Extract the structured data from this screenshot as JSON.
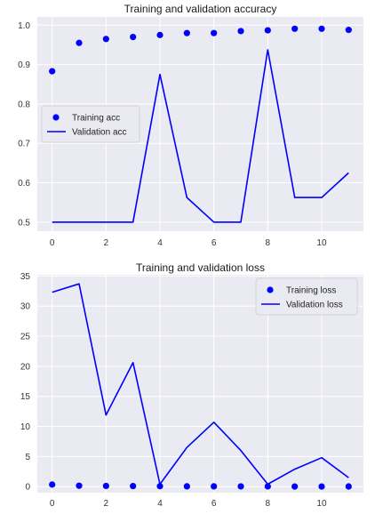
{
  "chart_data": [
    {
      "type": "line",
      "title": "Training and validation accuracy",
      "xlabel": "",
      "ylabel": "",
      "xlim": [
        -0.55,
        11.55
      ],
      "ylim": [
        0.477,
        1.021
      ],
      "xticks": [
        0,
        2,
        4,
        6,
        8,
        10
      ],
      "yticks": [
        0.5,
        0.6,
        0.7,
        0.8,
        0.9,
        1.0
      ],
      "ytick_labels": [
        "0.5",
        "0.6",
        "0.7",
        "0.8",
        "0.9",
        "1.0"
      ],
      "grid": true,
      "legend_position": "center-left",
      "x": [
        0,
        1,
        2,
        3,
        4,
        5,
        6,
        7,
        8,
        9,
        10,
        11
      ],
      "series": [
        {
          "name": "Training acc",
          "style": "points",
          "color": "#0000ff",
          "values": [
            0.883,
            0.955,
            0.965,
            0.97,
            0.975,
            0.98,
            0.98,
            0.985,
            0.987,
            0.991,
            0.991,
            0.988
          ]
        },
        {
          "name": "Validation acc",
          "style": "line",
          "color": "#0000ff",
          "values": [
            0.5,
            0.5,
            0.5,
            0.5,
            0.875,
            0.5625,
            0.5,
            0.5,
            0.9375,
            0.5625,
            0.5625,
            0.625
          ]
        }
      ]
    },
    {
      "type": "line",
      "title": "Training and validation loss",
      "xlabel": "",
      "ylabel": "",
      "xlim": [
        -0.55,
        11.55
      ],
      "ylim": [
        -1.0,
        35.2
      ],
      "xticks": [
        0,
        2,
        4,
        6,
        8,
        10
      ],
      "yticks": [
        0,
        5,
        10,
        15,
        20,
        25,
        30,
        35
      ],
      "ytick_labels": [
        "0",
        "5",
        "10",
        "15",
        "20",
        "25",
        "30",
        "35"
      ],
      "grid": true,
      "legend_position": "top-right",
      "x": [
        0,
        1,
        2,
        3,
        4,
        5,
        6,
        7,
        8,
        9,
        10,
        11
      ],
      "series": [
        {
          "name": "Training loss",
          "style": "points",
          "color": "#0000ff",
          "values": [
            0.35,
            0.15,
            0.12,
            0.1,
            0.07,
            0.05,
            0.05,
            0.04,
            0.04,
            0.02,
            0.02,
            0.03
          ]
        },
        {
          "name": "Validation loss",
          "style": "line",
          "color": "#0000ff",
          "values": [
            32.3,
            33.7,
            11.9,
            20.6,
            0.4,
            6.5,
            10.7,
            6.0,
            0.4,
            2.9,
            4.8,
            1.5
          ]
        }
      ]
    }
  ]
}
